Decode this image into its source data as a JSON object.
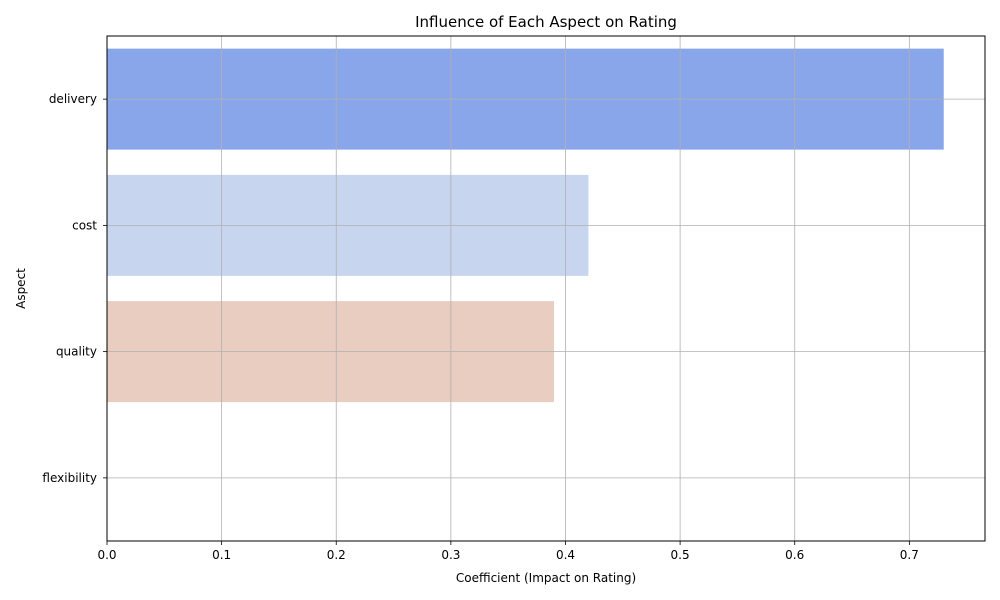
{
  "chart_data": {
    "type": "bar",
    "orientation": "horizontal",
    "title": "Influence of Each Aspect on Rating",
    "xlabel": "Coefficient (Impact on Rating)",
    "ylabel": "Aspect",
    "categories": [
      "delivery",
      "cost",
      "quality",
      "flexibility"
    ],
    "values": [
      0.73,
      0.42,
      0.39,
      0.0
    ],
    "bar_colors": [
      "#8aa6ea",
      "#c7d5ef",
      "#e9cdc0",
      "#f3a98c"
    ],
    "xlim": [
      0,
      0.766
    ],
    "xticks": [
      "0.0",
      "0.1",
      "0.2",
      "0.3",
      "0.4",
      "0.5",
      "0.6",
      "0.7"
    ],
    "xtick_values": [
      0,
      0.1,
      0.2,
      0.3,
      0.4,
      0.5,
      0.6,
      0.7
    ],
    "grid": true,
    "grid_color": "#b0b0b0"
  }
}
